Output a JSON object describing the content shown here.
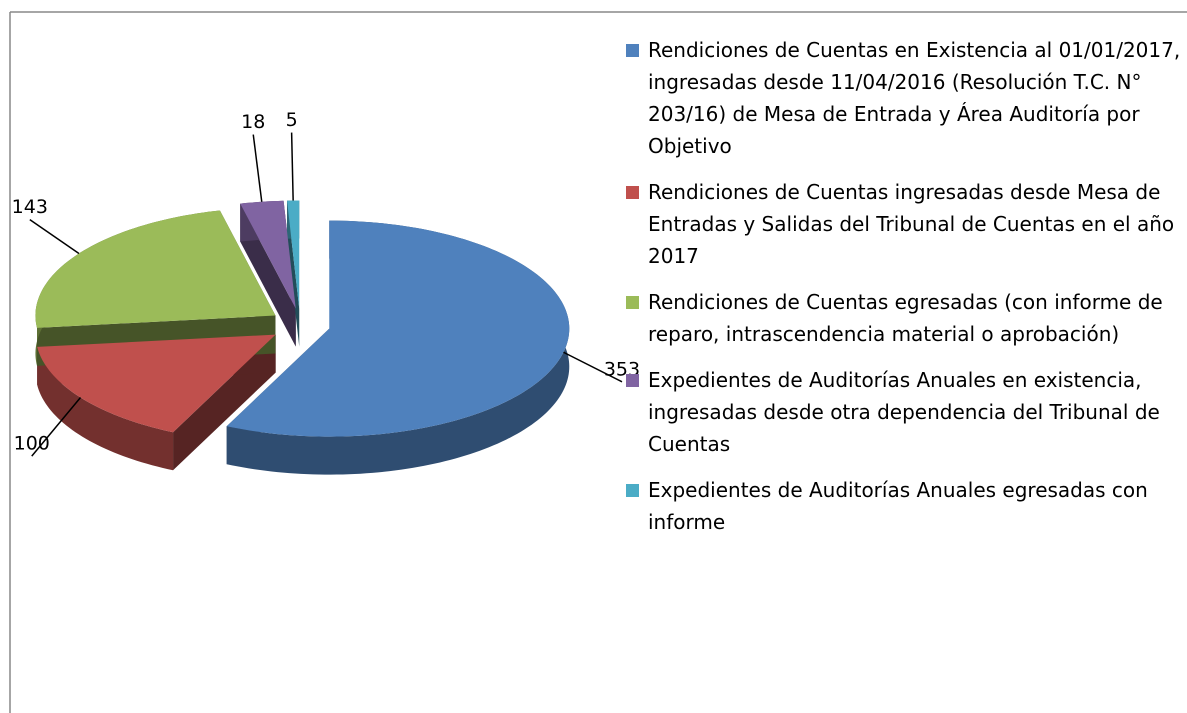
{
  "chart_data": {
    "type": "pie",
    "categories": [
      "Rendiciones de Cuentas en Existencia al 01/01/2017, ingresadas desde 11/04/2016 (Resolución T.C. N° 203/16) de Mesa de Entrada y Área Auditoría por Objetivo",
      "Rendiciones de Cuentas ingresadas desde Mesa de Entradas y Salidas del Tribunal de Cuentas en el año 2017",
      "Rendiciones de Cuentas egresadas (con informe de reparo, intrascendencia material o aprobación)",
      "Expedientes de Auditorías Anuales en existencia, ingresadas desde otra dependencia del Tribunal de Cuentas",
      "Expedientes de Auditorías Anuales egresadas con informe"
    ],
    "values": [
      353,
      100,
      143,
      18,
      5
    ],
    "colors": [
      "#4f81bd",
      "#c0504d",
      "#9bbb59",
      "#8064a2",
      "#4bacc6"
    ],
    "legend": "right",
    "exploded": true,
    "three_d": true
  }
}
